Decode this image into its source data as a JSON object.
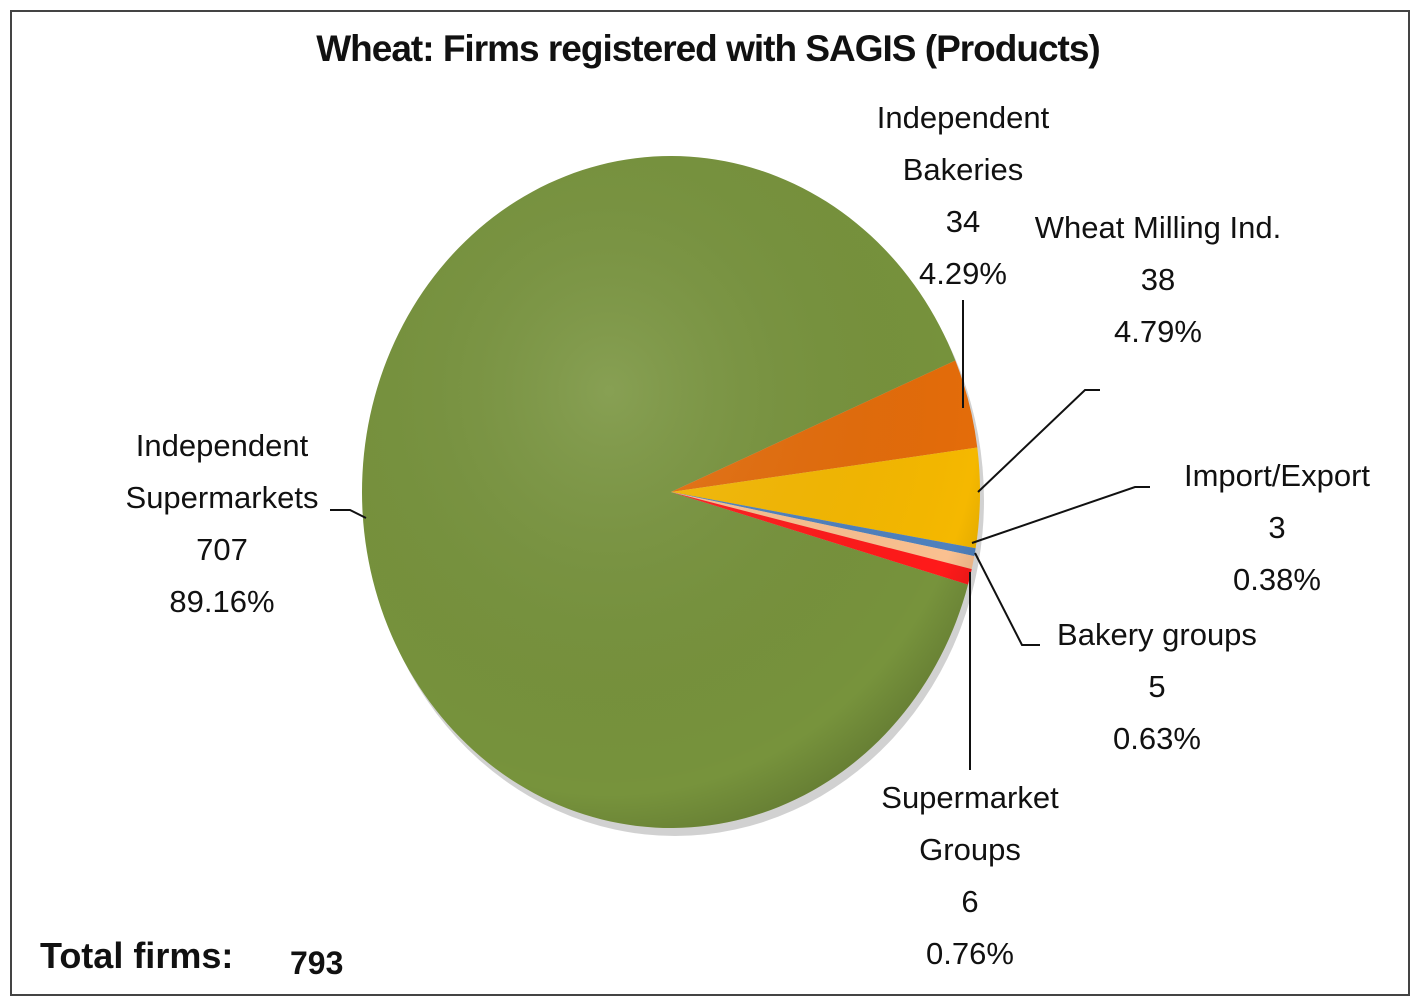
{
  "chart_data": {
    "type": "pie",
    "title": "Wheat: Firms registered with SAGIS (Products)",
    "categories": [
      "Independent Supermarkets",
      "Independent Bakeries",
      "Wheat Milling Ind.",
      "Import/Export",
      "Bakery groups",
      "Supermarket Groups"
    ],
    "values": [
      707,
      34,
      38,
      3,
      5,
      6
    ],
    "percentages": [
      89.16,
      4.29,
      4.79,
      0.38,
      0.63,
      0.76
    ],
    "percent_labels": [
      "89.16%",
      "4.29%",
      "4.79%",
      "0.38%",
      "0.63%",
      "0.76%"
    ],
    "colors": [
      "#77933c",
      "#e46c0a",
      "#f5b800",
      "#4f81bd",
      "#fac090",
      "#ff1a1a"
    ],
    "total_label": "Total firms:",
    "total": 793
  }
}
